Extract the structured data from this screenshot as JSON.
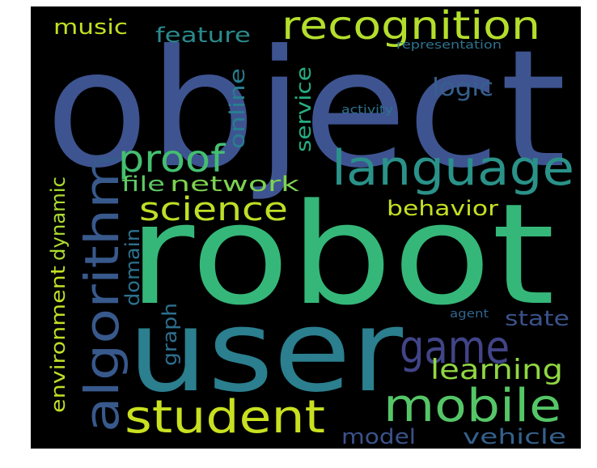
{
  "background_color": "#000000",
  "words": [
    {
      "text": "object",
      "color": "#3e5491"
    },
    {
      "text": "robot",
      "color": "#35b779"
    },
    {
      "text": "user",
      "color": "#2b7f8e"
    },
    {
      "text": "recognition",
      "color": "#b4de2c"
    },
    {
      "text": "language",
      "color": "#2a9289"
    },
    {
      "text": "algorithm",
      "color": "#38598c"
    },
    {
      "text": "proof",
      "color": "#44bf70"
    },
    {
      "text": "science",
      "color": "#bddf26"
    },
    {
      "text": "student",
      "color": "#c8e020"
    },
    {
      "text": "mobile",
      "color": "#55c667"
    },
    {
      "text": "game",
      "color": "#414487"
    },
    {
      "text": "music",
      "color": "#c2df23"
    },
    {
      "text": "feature",
      "color": "#2a8a8c"
    },
    {
      "text": "representation",
      "color": "#2c738e"
    },
    {
      "text": "logic",
      "color": "#355f8d"
    },
    {
      "text": "activity",
      "color": "#2b748e"
    },
    {
      "text": "online",
      "color": "#277e8e"
    },
    {
      "text": "service",
      "color": "#26ad81"
    },
    {
      "text": "file",
      "color": "#5ec962"
    },
    {
      "text": "network",
      "color": "#7cd250"
    },
    {
      "text": "behavior",
      "color": "#c5e021"
    },
    {
      "text": "dynamic",
      "color": "#addc30"
    },
    {
      "text": "environment",
      "color": "#c0df25"
    },
    {
      "text": "domain",
      "color": "#2d718e"
    },
    {
      "text": "graph",
      "color": "#2e6e8e"
    },
    {
      "text": "state",
      "color": "#3b528b"
    },
    {
      "text": "learning",
      "color": "#90d743"
    },
    {
      "text": "agent",
      "color": "#32648e"
    },
    {
      "text": "model",
      "color": "#3b528b"
    },
    {
      "text": "vehicle",
      "color": "#34618d"
    }
  ]
}
